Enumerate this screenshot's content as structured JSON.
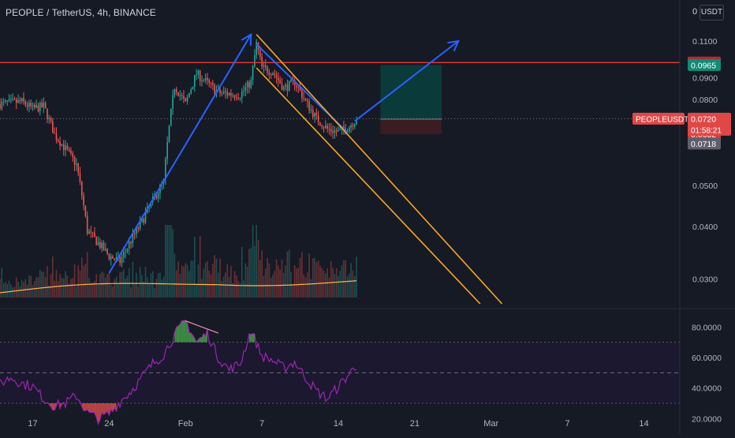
{
  "header": {
    "title": "PEOPLE / TetherUS, 4h, BINANCE",
    "currency": "USDT",
    "corner_value": "0"
  },
  "colors": {
    "background": "#161a25",
    "up": "#26a69a",
    "down": "#ef5350",
    "resistance_line": "#e53935",
    "channel_line": "#f5a623",
    "arrow_line": "#2962ff",
    "target_zone": "#0b3a3a",
    "stop_zone": "#3a1c22",
    "volume_ma": "#ffb74d",
    "rsi_line": "#9c27b0",
    "rsi_band": "#1c1830"
  },
  "price_labels": {
    "resistance": "0.0978",
    "target": "0.0965",
    "symbol": "PEOPLEUSDT",
    "last": "0.0720",
    "countdown": "01:58:21",
    "entry": "0.0718",
    "stop": "0.0662"
  },
  "chart_data": [
    {
      "type": "candlestick",
      "title": "PEOPLE / TetherUS, 4h, BINANCE",
      "x_tick_labels": [
        "17",
        "24",
        "Feb",
        "7",
        "14",
        "21",
        "Mar",
        "7",
        "14"
      ],
      "y_tick_labels": [
        "0.1100",
        "0.0900",
        "0.0800",
        "0.0500",
        "0.0400",
        "0.0300"
      ],
      "y_scale": "log",
      "ylim": [
        0.0262,
        0.129
      ],
      "x_start": "2022-01-14",
      "x_end": "2022-03-17",
      "grid": false,
      "price_path": [
        [
          "2022-01-14",
          0.078
        ],
        [
          "2022-01-16",
          0.079
        ],
        [
          "2022-01-17",
          0.076
        ],
        [
          "2022-01-18",
          0.077
        ],
        [
          "2022-01-19",
          0.066
        ],
        [
          "2022-01-21",
          0.056
        ],
        [
          "2022-01-22",
          0.039
        ],
        [
          "2022-01-24",
          0.034
        ],
        [
          "2022-01-25",
          0.033
        ],
        [
          "2022-01-27",
          0.041
        ],
        [
          "2022-01-29",
          0.051
        ],
        [
          "2022-01-30",
          0.086
        ],
        [
          "2022-01-31",
          0.078
        ],
        [
          "2022-02-01",
          0.092
        ],
        [
          "2022-02-03",
          0.083
        ],
        [
          "2022-02-05",
          0.082
        ],
        [
          "2022-02-06",
          0.088
        ],
        [
          "2022-02-06T12:00",
          0.108
        ],
        [
          "2022-02-07",
          0.095
        ],
        [
          "2022-02-08",
          0.093
        ],
        [
          "2022-02-09",
          0.085
        ],
        [
          "2022-02-10",
          0.088
        ],
        [
          "2022-02-11",
          0.079
        ],
        [
          "2022-02-12",
          0.072
        ],
        [
          "2022-02-13",
          0.068
        ],
        [
          "2022-02-14",
          0.067
        ],
        [
          "2022-02-15",
          0.069
        ],
        [
          "2022-02-15T16:00",
          0.072
        ]
      ],
      "annotations": {
        "horizontal_line": 0.0978,
        "long_position": {
          "entry": 0.0718,
          "target": 0.0965,
          "stop": 0.0662
        },
        "projection_arrow": [
          [
            "2022-02-15T12:00",
            0.071
          ],
          [
            "2022-02-25",
            0.11
          ]
        ],
        "trend_arrow": [
          [
            "2022-01-24",
            0.031
          ],
          [
            "2022-02-06",
            0.114
          ]
        ],
        "descending_channel_upper": [
          [
            "2022-02-06T12:00",
            0.114
          ],
          [
            "2022-03-01",
            0.0262
          ]
        ],
        "descending_channel_lower": [
          [
            "2022-02-06T12:00",
            0.095
          ],
          [
            "2022-02-27",
            0.0262
          ]
        ]
      }
    },
    {
      "type": "bar",
      "title": "",
      "series": [
        {
          "name": "",
          "values_note_only_heights_relative": []
        }
      ]
    },
    {
      "type": "line",
      "title": "",
      "ylim": [
        15,
        90
      ],
      "y_tick_labels": [
        "80.0000",
        "60.0000",
        "40.0000",
        "20.0000"
      ],
      "bands": {
        "upper": 70,
        "middle": 50,
        "lower": 30
      },
      "rsi_path": [
        [
          "2022-01-14",
          43
        ],
        [
          "2022-01-15",
          47
        ],
        [
          "2022-01-16",
          43
        ],
        [
          "2022-01-17",
          41
        ],
        [
          "2022-01-18",
          33
        ],
        [
          "2022-01-19",
          28
        ],
        [
          "2022-01-20",
          30
        ],
        [
          "2022-01-21",
          35
        ],
        [
          "2022-01-22",
          24
        ],
        [
          "2022-01-23",
          20
        ],
        [
          "2022-01-24",
          23
        ],
        [
          "2022-01-25",
          31
        ],
        [
          "2022-01-26",
          38
        ],
        [
          "2022-01-27",
          47
        ],
        [
          "2022-01-28",
          56
        ],
        [
          "2022-01-29",
          62
        ],
        [
          "2022-01-30",
          75
        ],
        [
          "2022-01-31",
          84
        ],
        [
          "2022-02-01",
          70
        ],
        [
          "2022-02-02",
          76
        ],
        [
          "2022-02-03",
          60
        ],
        [
          "2022-02-04",
          52
        ],
        [
          "2022-02-05",
          56
        ],
        [
          "2022-02-06",
          78
        ],
        [
          "2022-02-07",
          61
        ],
        [
          "2022-02-08",
          58
        ],
        [
          "2022-02-09",
          53
        ],
        [
          "2022-02-10",
          57
        ],
        [
          "2022-02-11",
          47
        ],
        [
          "2022-02-12",
          38
        ],
        [
          "2022-02-13",
          33
        ],
        [
          "2022-02-14",
          41
        ],
        [
          "2022-02-15",
          49
        ],
        [
          "2022-02-15T16:00",
          55
        ]
      ]
    }
  ]
}
